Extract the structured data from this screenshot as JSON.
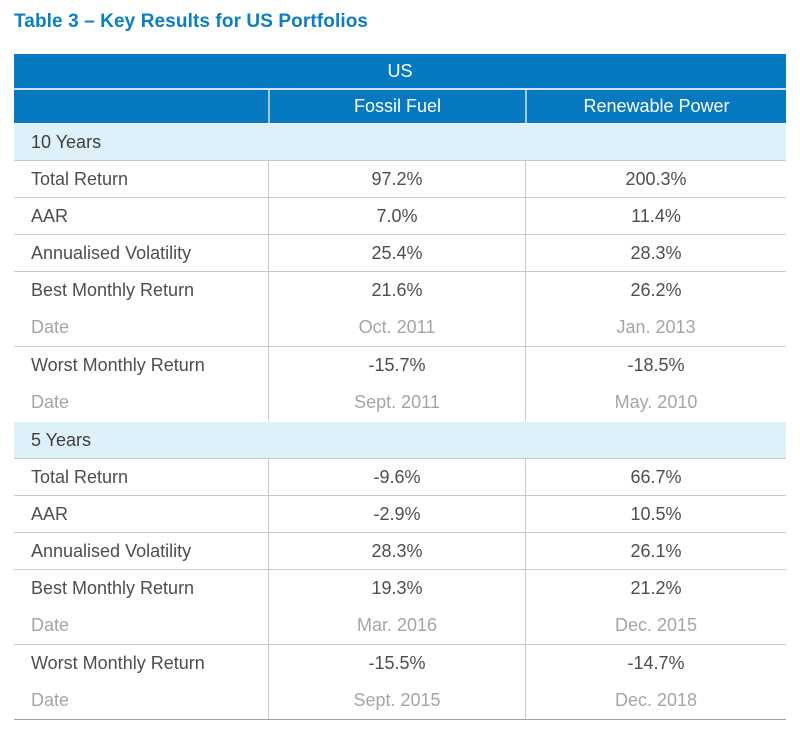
{
  "title": "Table 3 – Key Results for US Portfolios",
  "colors": {
    "header_blue": "#0779c0",
    "band_light_blue": "#def0f9",
    "title_blue": "#0c7ec2",
    "body_text": "#4e4e4e",
    "date_text": "#a5a5a5",
    "border_gray": "#c9c9c9"
  },
  "table": {
    "region_header": "US",
    "columns": [
      "",
      "Fossil Fuel",
      "Renewable Power"
    ],
    "sections": [
      {
        "label": "10 Years",
        "rows": [
          {
            "label": "Total Return",
            "fossil": "97.2%",
            "renewable": "200.3%"
          },
          {
            "label": "AAR",
            "fossil": "7.0%",
            "renewable": "11.4%"
          },
          {
            "label": "Annualised Volatility",
            "fossil": "25.4%",
            "renewable": "28.3%"
          },
          {
            "label": "Best Monthly Return",
            "fossil": "21.6%",
            "renewable": "26.2%",
            "date_label": "Date",
            "date_fossil": "Oct. 2011",
            "date_renewable": "Jan. 2013"
          },
          {
            "label": "Worst Monthly Return",
            "fossil": "-15.7%",
            "renewable": "-18.5%",
            "date_label": "Date",
            "date_fossil": "Sept. 2011",
            "date_renewable": "May. 2010"
          }
        ]
      },
      {
        "label": "5 Years",
        "rows": [
          {
            "label": "Total Return",
            "fossil": "-9.6%",
            "renewable": "66.7%"
          },
          {
            "label": "AAR",
            "fossil": "-2.9%",
            "renewable": "10.5%"
          },
          {
            "label": "Annualised Volatility",
            "fossil": "28.3%",
            "renewable": "26.1%"
          },
          {
            "label": "Best Monthly Return",
            "fossil": "19.3%",
            "renewable": "21.2%",
            "date_label": "Date",
            "date_fossil": "Mar. 2016",
            "date_renewable": "Dec. 2015"
          },
          {
            "label": "Worst Monthly Return",
            "fossil": "-15.5%",
            "renewable": "-14.7%",
            "date_label": "Date",
            "date_fossil": "Sept. 2015",
            "date_renewable": "Dec. 2018"
          }
        ]
      }
    ]
  }
}
